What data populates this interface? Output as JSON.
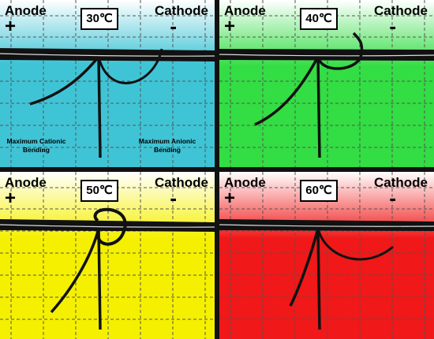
{
  "panels": [
    {
      "id": "p30",
      "anode": "Anode",
      "plus": "+",
      "cathode": "Cathode",
      "minus": "-",
      "temperature": "30℃",
      "gradient": [
        "#ffffff",
        "#3fc4d6"
      ],
      "notes": {
        "left": [
          "Maximum Cationic",
          "Bending"
        ],
        "right": [
          "Maximum Anionic",
          "Bending"
        ]
      }
    },
    {
      "id": "p40",
      "anode": "Anode",
      "plus": "+",
      "cathode": "Cathode",
      "minus": "-",
      "temperature": "40℃",
      "gradient": [
        "#ffffff",
        "#33dd44"
      ]
    },
    {
      "id": "p50",
      "anode": "Anode",
      "plus": "+",
      "cathode": "Cathode",
      "minus": "-",
      "temperature": "50℃",
      "gradient": [
        "#ffffff",
        "#f5f000"
      ]
    },
    {
      "id": "p60",
      "anode": "Anode",
      "plus": "+",
      "cathode": "Cathode",
      "minus": "-",
      "temperature": "60℃",
      "gradient": [
        "#ffffff",
        "#f01818"
      ]
    }
  ]
}
